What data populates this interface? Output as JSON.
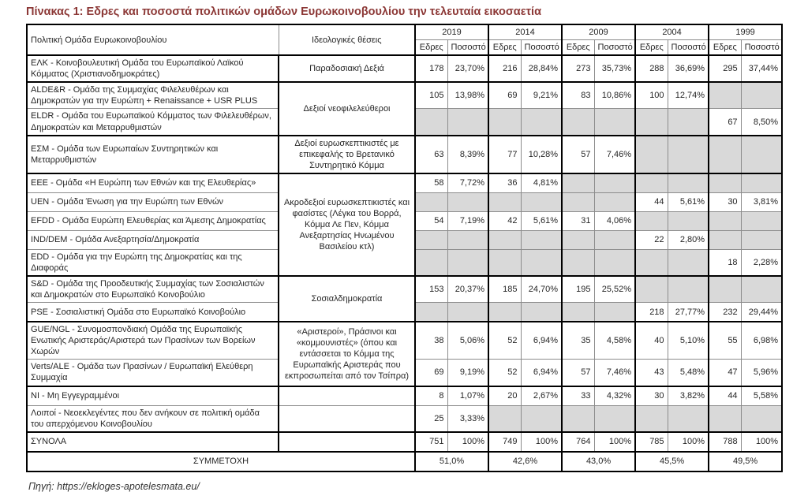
{
  "page": {
    "title": "Πίνακας 1: Εδρες και ποσοστά πολιτικών ομάδων Ευρωκοινοβουλίου την τελευταία εικοσαετία",
    "source": "Πηγή: https://ekloges-apotelesmata.eu/"
  },
  "colors": {
    "title": "#8C3836",
    "shaded_cell": "#D9D9D9"
  },
  "table": {
    "header": {
      "group_col": "Πολιτική Ομάδα Ευρωκοινοβουλίου",
      "ideology_col": "Ιδεολογικές θέσεις",
      "years": [
        "2019",
        "2014",
        "2009",
        "2004",
        "1999"
      ],
      "seat_label": "Εδρες",
      "pct_label": "Ποσοστό"
    },
    "blocks": [
      {
        "ideology": "Παραδοσιακή Δεξιά",
        "rows": [
          {
            "name": "ΕΛΚ - Κοινοβουλευτική Ομάδα του Ευρωπαϊκού Λαϊκού Κόμματος (Χριστιανοδημοκράτες)",
            "values": [
              [
                "178",
                "23,70%"
              ],
              [
                "216",
                "28,84%"
              ],
              [
                "273",
                "35,73%"
              ],
              [
                "288",
                "36,69%"
              ],
              [
                "295",
                "37,44%"
              ]
            ]
          }
        ]
      },
      {
        "ideology": "Δεξιοί νεοφιλελεύθεροι",
        "rows": [
          {
            "name": "ALDE&R - Ομάδα της Συμμαχίας Φιλελευθέρων και Δημοκρατών για την Ευρώπη + Renaissance + USR PLUS",
            "values": [
              [
                "105",
                "13,98%"
              ],
              [
                "69",
                "9,21%"
              ],
              [
                "83",
                "10,86%"
              ],
              [
                "100",
                "12,74%"
              ],
              null
            ]
          },
          {
            "name": "ELDR - Ομάδα του Ευρωπαϊκού Κόμματος των Φιλελευθέρων, Δημοκρατών και Μεταρρυθμιστών",
            "values": [
              null,
              null,
              null,
              null,
              [
                "67",
                "8,50%"
              ]
            ]
          }
        ]
      },
      {
        "ideology": "Δεξιοί ευρωσκεπτικιστές με επικεφαλής το Βρετανικό Συντηρητικό Κόμμα",
        "rows": [
          {
            "name": "ΕΣΜ - Ομάδα των Ευρωπαίων Συντηρητικών και Μεταρρυθμιστών",
            "values": [
              [
                "63",
                "8,39%"
              ],
              [
                "77",
                "10,28%"
              ],
              [
                "57",
                "7,46%"
              ],
              null,
              null
            ]
          }
        ]
      },
      {
        "ideology": "Ακροδεξιοί ευρωσκεπτικιστές και φασίστες (Λέγκα του Βορρά, Κόμμα Λε Πεν, Κόμμα Ανεξαρτησίας Ηνωμένου Βασιλείου κτλ)",
        "rows": [
          {
            "name": "EEE - Ομάδα «Η Ευρώπη των Εθνών και της Ελευθερίας»",
            "values": [
              [
                "58",
                "7,72%"
              ],
              [
                "36",
                "4,81%"
              ],
              null,
              null,
              null
            ]
          },
          {
            "name": "UEN - Ομάδα Ένωση για την Ευρώπη των Εθνών",
            "values": [
              null,
              null,
              null,
              [
                "44",
                "5,61%"
              ],
              [
                "30",
                "3,81%"
              ]
            ]
          },
          {
            "name": "EFDD - Ομάδα Ευρώπη Ελευθερίας και Άμεσης Δημοκρατίας",
            "values": [
              [
                "54",
                "7,19%"
              ],
              [
                "42",
                "5,61%"
              ],
              [
                "31",
                "4,06%"
              ],
              null,
              null
            ]
          },
          {
            "name": "IND/DEM - Ομάδα Ανεξαρτησία/Δημοκρατία",
            "values": [
              null,
              null,
              null,
              [
                "22",
                "2,80%"
              ],
              null
            ]
          },
          {
            "name": "EDD - Ομάδα για την Ευρώπη της Δημοκρατίας και της Διαφοράς",
            "values": [
              null,
              null,
              null,
              null,
              [
                "18",
                "2,28%"
              ]
            ]
          }
        ]
      },
      {
        "ideology": "Σοσιαλδημοκρατία",
        "rows": [
          {
            "name": "S&D - Ομάδα της Προοδευτικής Συμμαχίας των Σοσιαλιστών και Δημοκρατών στο Ευρωπαϊκό Κοινοβούλιο",
            "values": [
              [
                "153",
                "20,37%"
              ],
              [
                "185",
                "24,70%"
              ],
              [
                "195",
                "25,52%"
              ],
              null,
              null
            ]
          },
          {
            "name": "PSE - Σοσιαλιστική Ομάδα στο Ευρωπαϊκό Κοινοβούλιο",
            "values": [
              null,
              null,
              null,
              [
                "218",
                "27,77%"
              ],
              [
                "232",
                "29,44%"
              ]
            ]
          }
        ]
      },
      {
        "ideology": "«Αριστεροί», Πράσινοι και «κομμουνιστές» (όπου και εντάσσεται το Κόμμα της Ευρωπαϊκής Αριστεράς που εκπροσωπείται από τον Τσίπρα)",
        "rows": [
          {
            "name": "GUE/NGL - Συνομοσπονδιακή Ομάδα της Ευρωπαϊκής Ενωτικής Αριστεράς/Αριστερά των Πρασίνων των Βορείων Χωρών",
            "values": [
              [
                "38",
                "5,06%"
              ],
              [
                "52",
                "6,94%"
              ],
              [
                "35",
                "4,58%"
              ],
              [
                "40",
                "5,10%"
              ],
              [
                "55",
                "6,98%"
              ]
            ]
          },
          {
            "name": "Verts/ALE - Ομάδα των Πρασίνων / Ευρωπαϊκή Ελεύθερη Συμμαχία",
            "values": [
              [
                "69",
                "9,19%"
              ],
              [
                "52",
                "6,94%"
              ],
              [
                "57",
                "7,46%"
              ],
              [
                "43",
                "5,48%"
              ],
              [
                "47",
                "5,96%"
              ]
            ]
          }
        ]
      },
      {
        "ideology": "",
        "rows": [
          {
            "name": "NI - Μη Εγγεγραμμένοι",
            "values": [
              [
                "8",
                "1,07%"
              ],
              [
                "20",
                "2,67%"
              ],
              [
                "33",
                "4,32%"
              ],
              [
                "30",
                "3,82%"
              ],
              [
                "44",
                "5,58%"
              ]
            ]
          }
        ]
      },
      {
        "ideology": "",
        "light_sep": true,
        "rows": [
          {
            "name": "Λοιποί - Νεοεκλεγέντες που δεν ανήκουν σε πολιτική ομάδα του απερχόμενου Κοινοβουλίου",
            "values": [
              [
                "25",
                "3,33%"
              ],
              null,
              null,
              null,
              null
            ]
          }
        ]
      }
    ],
    "totals": {
      "label": "ΣΥΝΟΛΑ",
      "values": [
        [
          "751",
          "100%"
        ],
        [
          "749",
          "100%"
        ],
        [
          "764",
          "100%"
        ],
        [
          "785",
          "100%"
        ],
        [
          "788",
          "100%"
        ]
      ]
    },
    "participation": {
      "label": "ΣΥΜΜΕΤΟΧΗ",
      "values": [
        "51,0%",
        "42,6%",
        "43,0%",
        "45,5%",
        "49,5%"
      ]
    }
  }
}
